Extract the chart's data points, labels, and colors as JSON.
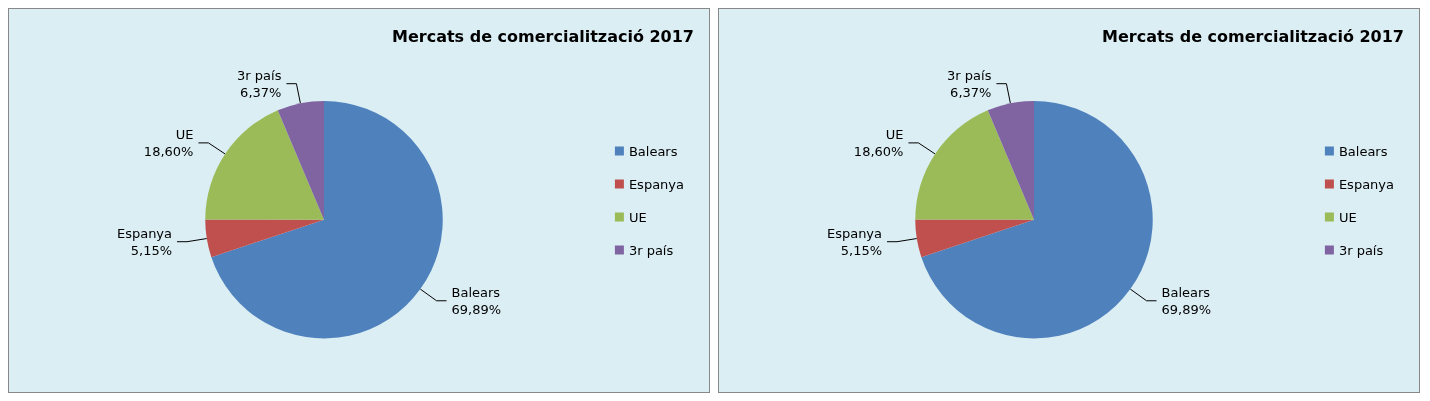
{
  "chart_data": [
    {
      "type": "pie",
      "title": "Mercats de comercialització 2017",
      "categories": [
        "Balears",
        "Espanya",
        "UE",
        "3r país"
      ],
      "values": [
        69.89,
        5.15,
        18.6,
        6.37
      ],
      "colors": [
        "#4f81bd",
        "#c0504d",
        "#9bbb59",
        "#8064a2"
      ],
      "value_labels": [
        "69,89%",
        "5,15%",
        "18,60%",
        "6,37%"
      ],
      "legend": "right"
    },
    {
      "type": "pie",
      "title": "Mercats de comercialització 2017",
      "categories": [
        "Balears",
        "Espanya",
        "UE",
        "3r país"
      ],
      "values": [
        69.89,
        5.15,
        18.6,
        6.37
      ],
      "colors": [
        "#4f81bd",
        "#c0504d",
        "#9bbb59",
        "#8064a2"
      ],
      "value_labels": [
        "69,89%",
        "5,15%",
        "18,60%",
        "6,37%"
      ],
      "legend": "right"
    }
  ]
}
